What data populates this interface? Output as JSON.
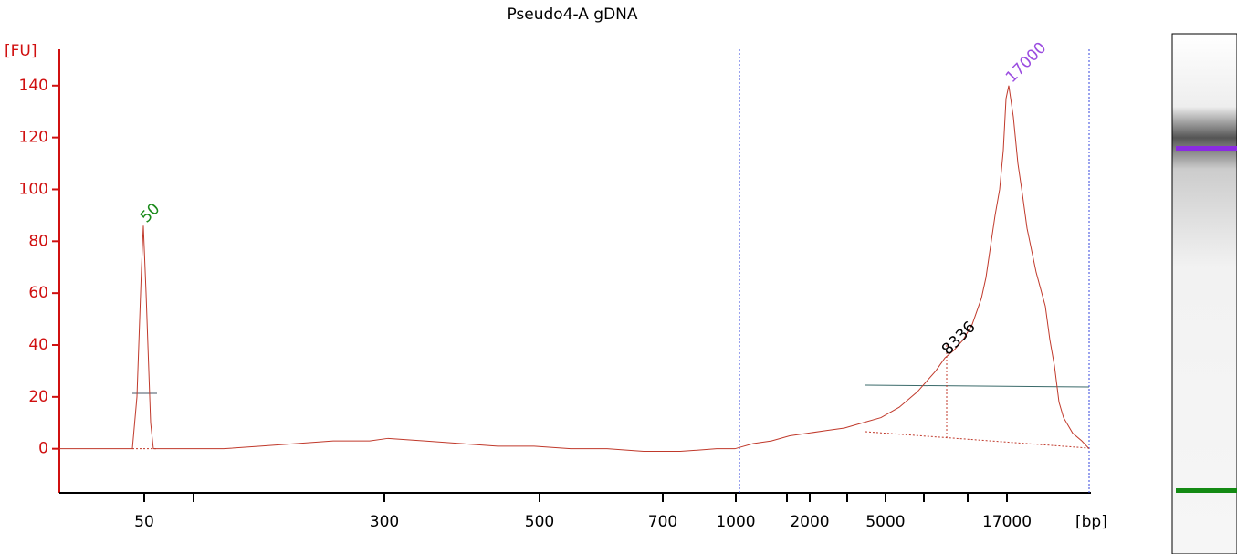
{
  "chart_data": {
    "type": "line",
    "title": "Pseudo4-A gDNA",
    "y_label": "[FU]",
    "x_label": "[bp]",
    "color": "#c0392b",
    "axis_color": "#d01010",
    "xlim": [
      0,
      113
    ],
    "ylim": [
      -17,
      154
    ],
    "yticks": [
      0,
      20,
      40,
      60,
      80,
      100,
      120,
      140
    ],
    "xticks": [
      {
        "value": 9.3,
        "label": "50"
      },
      {
        "value": 35.6,
        "label": "300"
      },
      {
        "value": 52.6,
        "label": "500"
      },
      {
        "value": 66.1,
        "label": "700"
      },
      {
        "value": 74.1,
        "label": "1000"
      },
      {
        "value": 82.2,
        "label": "2000"
      },
      {
        "value": 90.5,
        "label": "5000"
      },
      {
        "value": 103.8,
        "label": "17000"
      }
    ],
    "xminorticks": [
      14.7,
      79.7,
      86.3,
      94.7,
      99.5
    ],
    "region_bounds": [
      74.5,
      112.8
    ],
    "x": [
      0,
      3,
      6,
      8,
      8.5,
      9,
      9.2,
      9.5,
      10,
      10.3,
      11,
      14,
      18,
      22,
      26,
      30,
      34,
      36,
      40,
      44,
      48,
      52,
      56,
      60,
      64,
      68,
      72,
      74,
      76,
      78,
      80,
      82,
      84,
      86,
      88,
      90,
      92,
      94,
      95,
      96,
      97,
      98,
      99,
      100,
      101,
      101.5,
      102,
      102.5,
      103,
      103.4,
      103.7,
      104,
      104.5,
      105,
      105.5,
      106,
      107,
      108,
      108.5,
      109,
      109.5,
      110,
      111,
      112,
      112.8
    ],
    "values": [
      0,
      0,
      0,
      0,
      20,
      70,
      86,
      60,
      10,
      0,
      0,
      0,
      0,
      1,
      2,
      3,
      3,
      4,
      3,
      2,
      1,
      1,
      0,
      0,
      -1,
      -1,
      0,
      0,
      2,
      3,
      5,
      6,
      7,
      8,
      10,
      12,
      16,
      22,
      26,
      30,
      35,
      38,
      42,
      48,
      58,
      66,
      78,
      90,
      100,
      115,
      135,
      140,
      128,
      110,
      98,
      85,
      68,
      55,
      42,
      32,
      18,
      12,
      6,
      3,
      0
    ],
    "peak_labels": [
      {
        "text": "50",
        "x": 9.2,
        "y": 86,
        "color": "#1a8a1a"
      },
      {
        "text": "8336",
        "x": 97,
        "y": 35,
        "color": "#000000"
      },
      {
        "text": "17000",
        "x": 104,
        "y": 140,
        "color": "#9b4de0"
      }
    ]
  }
}
